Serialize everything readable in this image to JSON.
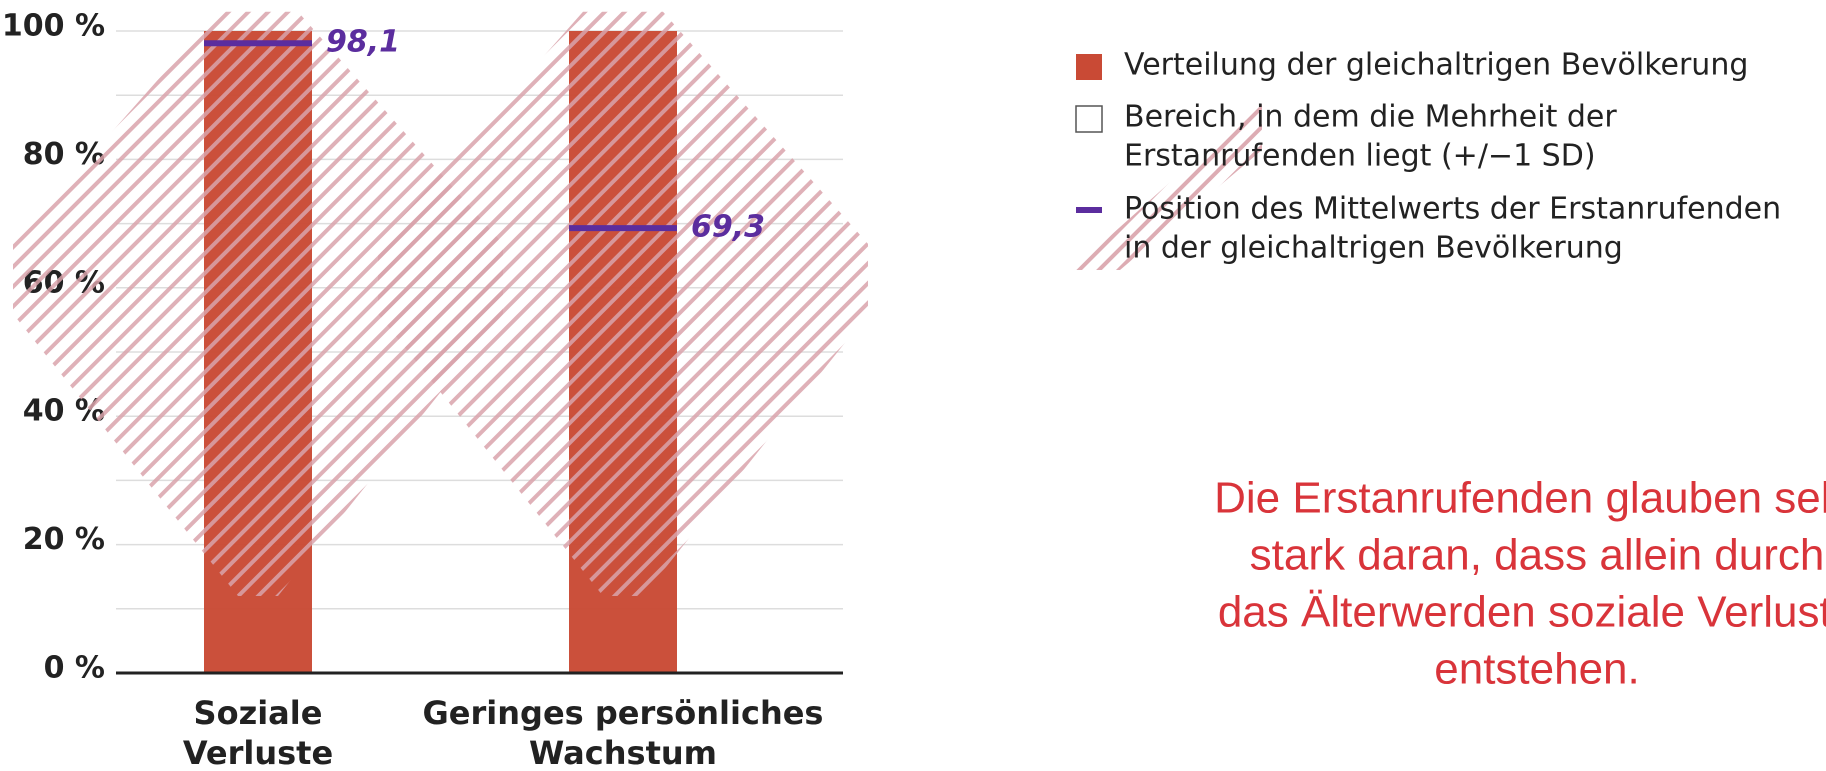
{
  "chart_data": {
    "type": "bar",
    "categories": [
      [
        "Soziale",
        "Verluste"
      ],
      [
        "Geringes persönliches",
        "Wachstum"
      ]
    ],
    "values": [
      100,
      100
    ],
    "color": "#c94a35",
    "markers": {
      "values": [
        98.1,
        69.3
      ],
      "value_labels": [
        "98,1",
        "69,3"
      ],
      "color": "#5b2d9e"
    },
    "sd_ranges": {
      "low": [
        12,
        12
      ],
      "high": [
        103,
        103
      ],
      "color": "#d9a3ab"
    },
    "ylim": [
      0,
      100
    ],
    "yticks": [
      {
        "value": 0,
        "label": "0 %"
      },
      {
        "value": 20,
        "label": "20 %"
      },
      {
        "value": 40,
        "label": "40 %"
      },
      {
        "value": 60,
        "label": "60 %"
      },
      {
        "value": 80,
        "label": "80 %"
      },
      {
        "value": 100,
        "label": "100 %"
      }
    ],
    "minor_grid": [
      10,
      30,
      50,
      70,
      90
    ],
    "grid": true,
    "legend": [
      "Verteilung der gleichaltrigen Bevölkerung",
      [
        "Bereich, in dem die Mehrheit der",
        "Erstanrufenden liegt (+/−1 SD)"
      ],
      [
        "Position des Mittelwerts der Erstanrufenden",
        "in der gleichaltrigen Bevölkerung"
      ]
    ],
    "annotation": {
      "lines": [
        "Die Erstanrufenden glauben sehr",
        "stark daran, dass allein durch",
        "das Älterwerden soziale Verluste",
        "entstehen."
      ],
      "color": "#d9343a"
    }
  }
}
